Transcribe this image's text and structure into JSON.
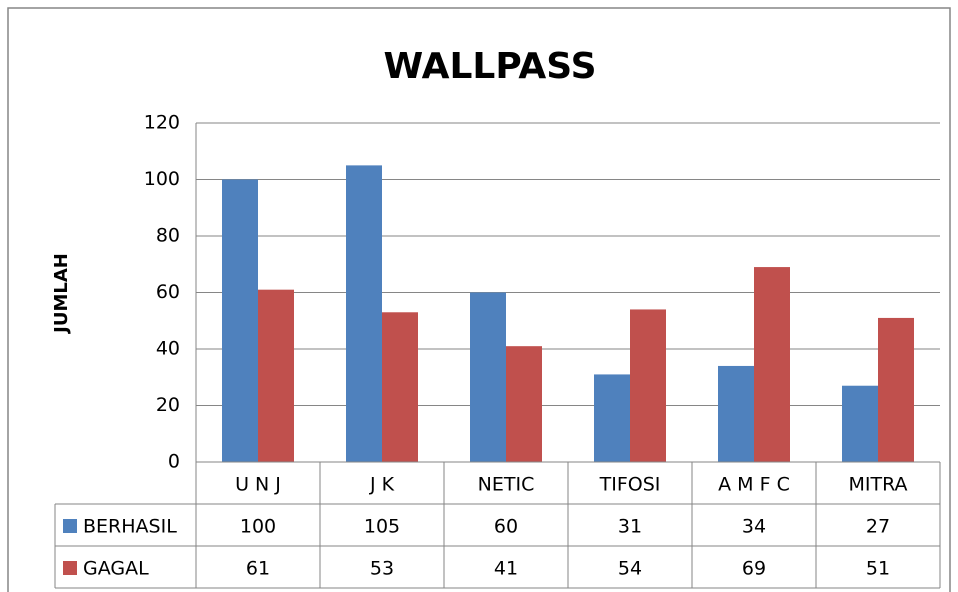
{
  "chart_data": {
    "type": "bar",
    "title": "WALLPASS",
    "y_label": "JUMLAH",
    "categories": [
      "U N J",
      "J K",
      "NETIC",
      "TIFOSI",
      "A M F C",
      "MITRA"
    ],
    "series": [
      {
        "name": "BERHASIL",
        "color": "#4f81bd",
        "values": [
          100,
          105,
          60,
          31,
          34,
          27
        ]
      },
      {
        "name": "GAGAL",
        "color": "#c0504d",
        "values": [
          61,
          53,
          41,
          54,
          69,
          51
        ]
      }
    ],
    "ylim": [
      0,
      120
    ],
    "yticks": [
      0,
      20,
      40,
      60,
      80,
      100,
      120
    ],
    "grid": true,
    "data_table": true
  }
}
